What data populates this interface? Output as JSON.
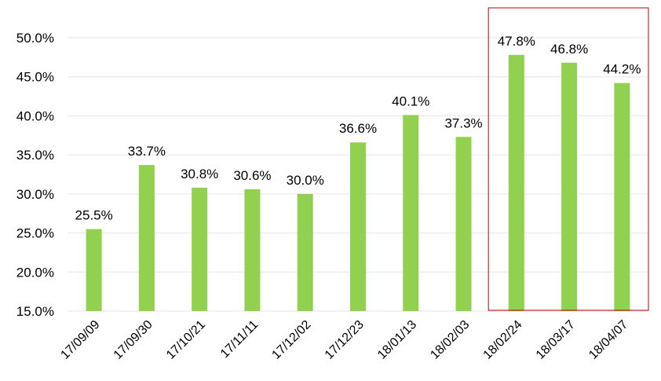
{
  "chart_data": {
    "type": "bar",
    "categories": [
      "17/09/09",
      "17/09/30",
      "17/10/21",
      "17/11/11",
      "17/12/02",
      "17/12/23",
      "18/01/13",
      "18/02/03",
      "18/02/24",
      "18/03/17",
      "18/04/07"
    ],
    "values": [
      25.5,
      33.7,
      30.8,
      30.6,
      30.0,
      36.6,
      40.1,
      37.3,
      47.8,
      46.8,
      44.2
    ],
    "data_labels": [
      "25.5%",
      "33.7%",
      "30.8%",
      "30.6%",
      "30.0%",
      "36.6%",
      "40.1%",
      "37.3%",
      "47.8%",
      "46.8%",
      "44.2%"
    ],
    "title": "",
    "xlabel": "",
    "ylabel": "",
    "ylim": [
      15,
      50
    ],
    "y_ticks": [
      15,
      20,
      25,
      30,
      35,
      40,
      45,
      50
    ],
    "y_tick_labels": [
      "15.0%",
      "20.0%",
      "25.0%",
      "30.0%",
      "35.0%",
      "40.0%",
      "45.0%",
      "50.0%"
    ],
    "grid": true,
    "legend": "none",
    "highlight": {
      "from_category": "18/02/24",
      "to_category": "18/04/07"
    }
  },
  "colors": {
    "bar": "#92d050",
    "grid": "#e6e6e6",
    "highlight_box": "#c00000",
    "axis_text": "#000000"
  }
}
